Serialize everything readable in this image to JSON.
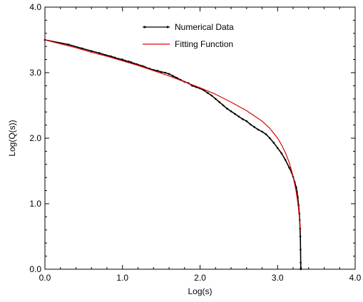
{
  "chart_data": {
    "type": "line",
    "title": "",
    "xlabel": "Log(s)",
    "ylabel": "Log(Q(s))",
    "xlim": [
      0,
      4
    ],
    "ylim": [
      0,
      4
    ],
    "x_ticks": [
      "0.0",
      "1.0",
      "2.0",
      "3.0",
      "4.0"
    ],
    "y_ticks": [
      "0.0",
      "1.0",
      "2.0",
      "3.0",
      "4.0"
    ],
    "grid": false,
    "legend_position": "top-center",
    "series": [
      {
        "name": "Numerical Data",
        "color": "#000000",
        "marker": "dot",
        "x": [
          0.0,
          0.3,
          0.48,
          0.6,
          0.7,
          0.78,
          0.85,
          0.9,
          0.95,
          1.0,
          1.04,
          1.08,
          1.11,
          1.15,
          1.18,
          1.2,
          1.23,
          1.26,
          1.28,
          1.3,
          1.35,
          1.4,
          1.45,
          1.5,
          1.55,
          1.6,
          1.65,
          1.7,
          1.75,
          1.8,
          1.85,
          1.9,
          1.95,
          2.0,
          2.05,
          2.1,
          2.15,
          2.2,
          2.25,
          2.3,
          2.35,
          2.4,
          2.45,
          2.5,
          2.55,
          2.6,
          2.65,
          2.7,
          2.75,
          2.8,
          2.85,
          2.9,
          2.95,
          3.0,
          3.05,
          3.1,
          3.15,
          3.18,
          3.2,
          3.22,
          3.24,
          3.25,
          3.26,
          3.27,
          3.28,
          3.285,
          3.29,
          3.293,
          3.296,
          3.298,
          3.3,
          3.3
        ],
        "y": [
          3.5,
          3.43,
          3.37,
          3.33,
          3.3,
          3.27,
          3.25,
          3.23,
          3.21,
          3.2,
          3.18,
          3.17,
          3.16,
          3.14,
          3.13,
          3.12,
          3.11,
          3.1,
          3.09,
          3.08,
          3.06,
          3.04,
          3.03,
          3.01,
          3.0,
          2.98,
          2.95,
          2.92,
          2.89,
          2.86,
          2.84,
          2.8,
          2.78,
          2.76,
          2.73,
          2.69,
          2.65,
          2.6,
          2.55,
          2.5,
          2.45,
          2.41,
          2.37,
          2.33,
          2.29,
          2.26,
          2.21,
          2.17,
          2.13,
          2.1,
          2.06,
          2.0,
          1.93,
          1.85,
          1.77,
          1.67,
          1.55,
          1.48,
          1.41,
          1.33,
          1.25,
          1.18,
          1.1,
          0.98,
          0.85,
          0.75,
          0.62,
          0.5,
          0.3,
          0.1,
          0.02,
          0.0
        ]
      },
      {
        "name": "Fitting Function",
        "color": "#e00000",
        "marker": "none",
        "x": [
          0.0,
          0.2,
          0.4,
          0.6,
          0.8,
          1.0,
          1.2,
          1.4,
          1.6,
          1.8,
          2.0,
          2.2,
          2.4,
          2.6,
          2.8,
          2.9,
          3.0,
          3.05,
          3.1,
          3.15,
          3.2,
          3.22,
          3.24,
          3.26,
          3.27,
          3.28,
          3.29,
          3.295
        ],
        "y": [
          3.5,
          3.44,
          3.38,
          3.31,
          3.25,
          3.18,
          3.11,
          3.03,
          2.95,
          2.86,
          2.77,
          2.67,
          2.55,
          2.42,
          2.26,
          2.15,
          2.0,
          1.9,
          1.78,
          1.63,
          1.42,
          1.3,
          1.18,
          1.02,
          0.92,
          0.8,
          0.66,
          0.6
        ]
      }
    ]
  }
}
